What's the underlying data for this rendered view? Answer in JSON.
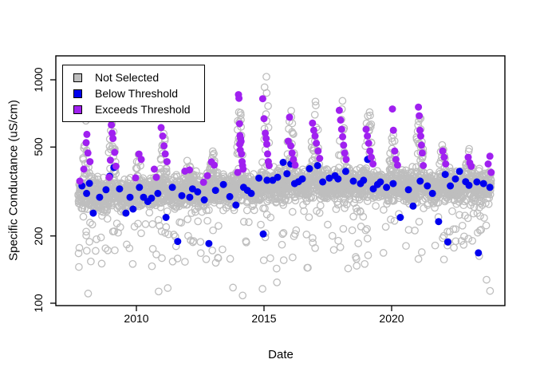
{
  "chart_data": {
    "type": "scatter",
    "title": "",
    "xlabel": "Date",
    "ylabel": "Specific Conductance (uS/cm)",
    "x_ticks": [
      "2010",
      "2015",
      "2020"
    ],
    "x_tick_years": [
      2010,
      2015,
      2020
    ],
    "y_ticks": [
      "100",
      "200",
      "500",
      "1000"
    ],
    "y_tick_values": [
      100,
      200,
      500,
      1000
    ],
    "y_scale": "log10",
    "xlim": [
      2006.84,
      2024.44
    ],
    "ylim": [
      98,
      1280
    ],
    "grid": false,
    "legend": {
      "position": "topleft",
      "entries": [
        {
          "label": "Not Selected",
          "color": "#BEBEBE",
          "filled": false
        },
        {
          "label": "Below Threshold",
          "color": "#0000EE",
          "filled": true
        },
        {
          "label": "Exceeds Threshold",
          "color": "#A020F0",
          "filled": true
        }
      ]
    },
    "series": [
      {
        "name": "Not Selected",
        "marker": "open-circle",
        "color": "#BEBEBE",
        "cloud_params": {
          "seed": 42,
          "n": 3400,
          "t_start": 2007.72,
          "t_end": 2023.9,
          "baseline_trend": [
            [
              2007.72,
              298
            ],
            [
              2009,
              305
            ],
            [
              2011,
              310
            ],
            [
              2013,
              320
            ],
            [
              2015,
              330
            ],
            [
              2016.5,
              340
            ],
            [
              2018,
              342
            ],
            [
              2019.5,
              335
            ],
            [
              2021,
              330
            ],
            [
              2023.9,
              328
            ]
          ],
          "noise_log_sd": 0.034,
          "low_prob": 0.05,
          "low_range": [
            155,
            268
          ],
          "deep_low_prob": 0.011,
          "deep_low_range": [
            108,
            178
          ],
          "spike_prob": 0.55,
          "spike_halfwidth": 0.14,
          "spikes": [
            [
              2008.02,
              660
            ],
            [
              2009.05,
              700
            ],
            [
              2010.08,
              480
            ],
            [
              2011.05,
              640
            ],
            [
              2012.02,
              480
            ],
            [
              2013.0,
              500
            ],
            [
              2014.05,
              880
            ],
            [
              2015.07,
              1100
            ],
            [
              2016.05,
              780
            ],
            [
              2017.0,
              880
            ],
            [
              2018.05,
              860
            ],
            [
              2019.1,
              890
            ],
            [
              2020.05,
              620
            ],
            [
              2021.1,
              800
            ],
            [
              2022.0,
              560
            ],
            [
              2023.0,
              520
            ]
          ]
        }
      },
      {
        "name": "Below Threshold",
        "marker": "filled-circle",
        "color": "#0000EE",
        "points": [
          [
            2007.87,
            335
          ],
          [
            2008.05,
            310
          ],
          [
            2008.16,
            344
          ],
          [
            2008.31,
            253
          ],
          [
            2008.56,
            298
          ],
          [
            2008.81,
            322
          ],
          [
            2008.95,
            370
          ],
          [
            2009.12,
            405
          ],
          [
            2009.34,
            325
          ],
          [
            2009.59,
            253
          ],
          [
            2009.75,
            298
          ],
          [
            2009.87,
            264
          ],
          [
            2010.12,
            330
          ],
          [
            2010.28,
            298
          ],
          [
            2010.45,
            285
          ],
          [
            2010.59,
            295
          ],
          [
            2010.84,
            310
          ],
          [
            2011.16,
            242
          ],
          [
            2011.41,
            330
          ],
          [
            2011.62,
            189
          ],
          [
            2011.78,
            303
          ],
          [
            2012.09,
            298
          ],
          [
            2012.2,
            325
          ],
          [
            2012.4,
            315
          ],
          [
            2012.66,
            290
          ],
          [
            2012.84,
            185
          ],
          [
            2013.1,
            320
          ],
          [
            2013.41,
            340
          ],
          [
            2013.66,
            300
          ],
          [
            2013.9,
            275
          ],
          [
            2014.2,
            330
          ],
          [
            2014.35,
            320
          ],
          [
            2014.5,
            310
          ],
          [
            2014.8,
            363
          ],
          [
            2014.97,
            204
          ],
          [
            2015.12,
            355
          ],
          [
            2015.34,
            355
          ],
          [
            2015.53,
            366
          ],
          [
            2015.75,
            427
          ],
          [
            2015.9,
            380
          ],
          [
            2016.05,
            420
          ],
          [
            2016.2,
            343
          ],
          [
            2016.35,
            350
          ],
          [
            2016.5,
            360
          ],
          [
            2016.78,
            400
          ],
          [
            2017.1,
            413
          ],
          [
            2017.3,
            349
          ],
          [
            2017.56,
            363
          ],
          [
            2017.78,
            372
          ],
          [
            2017.9,
            360
          ],
          [
            2018.2,
            389
          ],
          [
            2018.5,
            352
          ],
          [
            2018.78,
            343
          ],
          [
            2018.9,
            355
          ],
          [
            2019.06,
            440
          ],
          [
            2019.28,
            325
          ],
          [
            2019.45,
            340
          ],
          [
            2019.56,
            349
          ],
          [
            2019.8,
            330
          ],
          [
            2020.06,
            343
          ],
          [
            2020.34,
            242
          ],
          [
            2020.66,
            322
          ],
          [
            2020.84,
            272
          ],
          [
            2021.12,
            352
          ],
          [
            2021.4,
            335
          ],
          [
            2021.6,
            310
          ],
          [
            2021.84,
            232
          ],
          [
            2022.1,
            377
          ],
          [
            2022.2,
            188
          ],
          [
            2022.3,
            335
          ],
          [
            2022.5,
            360
          ],
          [
            2022.66,
            389
          ],
          [
            2022.9,
            350
          ],
          [
            2023.03,
            337
          ],
          [
            2023.34,
            349
          ],
          [
            2023.4,
            168
          ],
          [
            2023.6,
            343
          ],
          [
            2023.85,
            330
          ]
        ]
      },
      {
        "name": "Exceeds Threshold",
        "marker": "filled-circle",
        "color": "#A020F0",
        "points": [
          [
            2007.78,
            352
          ],
          [
            2007.94,
            398
          ],
          [
            2008.03,
            523
          ],
          [
            2008.06,
            570
          ],
          [
            2008.1,
            470
          ],
          [
            2008.18,
            430
          ],
          [
            2008.93,
            366
          ],
          [
            2008.98,
            437
          ],
          [
            2009.02,
            628
          ],
          [
            2009.05,
            577
          ],
          [
            2009.08,
            546
          ],
          [
            2009.15,
            473
          ],
          [
            2009.2,
            410
          ],
          [
            2009.97,
            364
          ],
          [
            2010.1,
            465
          ],
          [
            2010.19,
            440
          ],
          [
            2010.7,
            398
          ],
          [
            2010.78,
            366
          ],
          [
            2010.97,
            611
          ],
          [
            2011.03,
            560
          ],
          [
            2011.08,
            506
          ],
          [
            2011.13,
            466
          ],
          [
            2011.2,
            430
          ],
          [
            2011.9,
            390
          ],
          [
            2012.08,
            395
          ],
          [
            2012.63,
            348
          ],
          [
            2012.78,
            372
          ],
          [
            2012.94,
            429
          ],
          [
            2013.05,
            415
          ],
          [
            2013.97,
            385
          ],
          [
            2014.0,
            858
          ],
          [
            2014.02,
            826
          ],
          [
            2014.04,
            636
          ],
          [
            2014.05,
            515
          ],
          [
            2014.06,
            563
          ],
          [
            2014.07,
            485
          ],
          [
            2014.08,
            546
          ],
          [
            2014.1,
            530
          ],
          [
            2014.12,
            466
          ],
          [
            2014.14,
            430
          ],
          [
            2014.16,
            413
          ],
          [
            2014.18,
            398
          ],
          [
            2014.95,
            823
          ],
          [
            2015.0,
            670
          ],
          [
            2015.05,
            577
          ],
          [
            2015.08,
            546
          ],
          [
            2015.11,
            515
          ],
          [
            2015.14,
            466
          ],
          [
            2015.17,
            430
          ],
          [
            2015.2,
            413
          ],
          [
            2015.95,
            531
          ],
          [
            2016.0,
            680
          ],
          [
            2016.05,
            506
          ],
          [
            2016.1,
            470
          ],
          [
            2016.15,
            440
          ],
          [
            2016.22,
            415
          ],
          [
            2016.9,
            640
          ],
          [
            2016.95,
            594
          ],
          [
            2017.0,
            560
          ],
          [
            2017.05,
            520
          ],
          [
            2017.12,
            480
          ],
          [
            2017.18,
            445
          ],
          [
            2017.95,
            730
          ],
          [
            2018.0,
            660
          ],
          [
            2018.04,
            600
          ],
          [
            2018.08,
            556
          ],
          [
            2018.12,
            510
          ],
          [
            2018.16,
            470
          ],
          [
            2018.22,
            440
          ],
          [
            2019.0,
            600
          ],
          [
            2019.05,
            560
          ],
          [
            2019.1,
            520
          ],
          [
            2019.15,
            480
          ],
          [
            2019.2,
            450
          ],
          [
            2019.27,
            420
          ],
          [
            2020.03,
            740
          ],
          [
            2020.07,
            594
          ],
          [
            2020.12,
            480
          ],
          [
            2020.17,
            440
          ],
          [
            2020.23,
            415
          ],
          [
            2021.05,
            755
          ],
          [
            2021.08,
            690
          ],
          [
            2021.11,
            594
          ],
          [
            2021.14,
            560
          ],
          [
            2021.17,
            510
          ],
          [
            2021.2,
            470
          ],
          [
            2021.24,
            413
          ],
          [
            2022.0,
            480
          ],
          [
            2022.06,
            450
          ],
          [
            2022.12,
            420
          ],
          [
            2023.0,
            450
          ],
          [
            2023.06,
            425
          ],
          [
            2023.12,
            410
          ],
          [
            2023.78,
            420
          ],
          [
            2023.85,
            455
          ],
          [
            2023.9,
            385
          ]
        ]
      }
    ]
  }
}
